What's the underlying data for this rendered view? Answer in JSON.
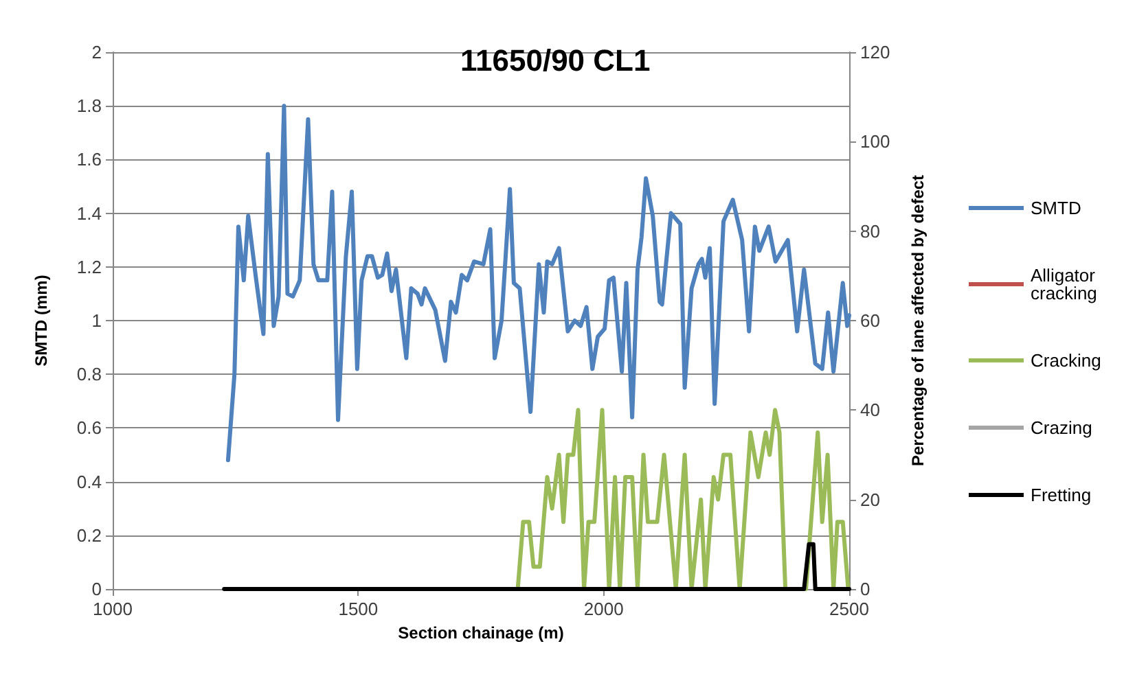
{
  "chart_data": {
    "type": "line",
    "title": "11650/90 CL1",
    "xlabel": "Section chainage (m)",
    "ylabel": "SMTD (mm)",
    "y2label": "Percentage of lane affected by defect",
    "xlim": [
      1000,
      2500
    ],
    "xticks": [
      1000,
      1500,
      2000,
      2500
    ],
    "ylim": [
      0,
      2
    ],
    "yticks": [
      0,
      0.2,
      0.4,
      0.6,
      0.8,
      1,
      1.2,
      1.4,
      1.6,
      1.8,
      2
    ],
    "y2lim": [
      0,
      120
    ],
    "y2ticks": [
      0,
      20,
      40,
      60,
      80,
      100,
      120
    ],
    "grid": "y",
    "legend": "right",
    "marker": "none",
    "line_style": "solid",
    "series": [
      {
        "name": "SMTD",
        "color": "#4f81bd",
        "x": [
          1235,
          1248,
          1256,
          1267,
          1276,
          1291,
          1307,
          1316,
          1328,
          1338,
          1349,
          1356,
          1367,
          1381,
          1398,
          1409,
          1419,
          1428,
          1437,
          1447,
          1459,
          1475,
          1487,
          1498,
          1507,
          1519,
          1528,
          1540,
          1549,
          1559,
          1568,
          1577,
          1598,
          1608,
          1621,
          1629,
          1636,
          1657,
          1677,
          1689,
          1699,
          1711,
          1722,
          1736,
          1755,
          1769,
          1778,
          1792,
          1809,
          1817,
          1829,
          1851,
          1868,
          1878,
          1885,
          1895,
          1909,
          1927,
          1941,
          1953,
          1965,
          1977,
          1988,
          2002,
          2011,
          2020,
          2037,
          2046,
          2058,
          2069,
          2077,
          2086,
          2100,
          2114,
          2119,
          2137,
          2156,
          2165,
          2179,
          2193,
          2200,
          2207,
          2216,
          2226,
          2244,
          2263,
          2282,
          2296,
          2308,
          2317,
          2336,
          2350,
          2375,
          2394,
          2408,
          2431,
          2445,
          2457,
          2468,
          2487,
          2496,
          2500
        ],
        "values": [
          0.48,
          0.8,
          1.35,
          1.15,
          1.39,
          1.17,
          0.95,
          1.62,
          0.98,
          1.09,
          1.8,
          1.1,
          1.09,
          1.15,
          1.75,
          1.21,
          1.15,
          1.15,
          1.15,
          1.48,
          0.63,
          1.24,
          1.48,
          0.82,
          1.15,
          1.24,
          1.24,
          1.16,
          1.17,
          1.25,
          1.11,
          1.19,
          0.86,
          1.12,
          1.1,
          1.06,
          1.12,
          1.04,
          0.85,
          1.07,
          1.03,
          1.17,
          1.15,
          1.22,
          1.21,
          1.34,
          0.86,
          1.0,
          1.49,
          1.14,
          1.12,
          0.66,
          1.21,
          1.03,
          1.22,
          1.21,
          1.27,
          0.96,
          1.0,
          0.98,
          1.05,
          0.82,
          0.94,
          0.97,
          1.15,
          1.16,
          0.81,
          1.14,
          0.64,
          1.19,
          1.31,
          1.53,
          1.39,
          1.07,
          1.06,
          1.4,
          1.36,
          0.75,
          1.12,
          1.21,
          1.23,
          1.16,
          1.27,
          0.69,
          1.37,
          1.45,
          1.3,
          0.96,
          1.35,
          1.26,
          1.35,
          1.22,
          1.3,
          0.96,
          1.19,
          0.84,
          0.82,
          1.03,
          0.81,
          1.14,
          0.98,
          1.02
        ]
      },
      {
        "name": "Alligator cracking",
        "color": "#c0504d",
        "axis": "y2"
      },
      {
        "name": "Cracking",
        "color": "#9bbb59",
        "axis": "y2",
        "x": [
          1825,
          1836,
          1848,
          1857,
          1870,
          1885,
          1895,
          1909,
          1918,
          1927,
          1938,
          1948,
          1960,
          1969,
          1981,
          1997,
          2011,
          2023,
          2033,
          2044,
          2058,
          2069,
          2081,
          2090,
          2104,
          2109,
          2123,
          2147,
          2165,
          2179,
          2198,
          2207,
          2224,
          2233,
          2244,
          2258,
          2277,
          2299,
          2315,
          2330,
          2338,
          2349,
          2358,
          2370,
          2412,
          2436,
          2445,
          2456,
          2468,
          2476,
          2487,
          2498
        ],
        "values": [
          0,
          15,
          15,
          5,
          5,
          25,
          18,
          30,
          15,
          30,
          30,
          40,
          0,
          15,
          15,
          40,
          0,
          25,
          0,
          25,
          25,
          0,
          30,
          15,
          15,
          15,
          30,
          0,
          30,
          0,
          20,
          0,
          25,
          20,
          30,
          30,
          0,
          35,
          25,
          35,
          30,
          40,
          35,
          0,
          0,
          35,
          15,
          30,
          0,
          15,
          15,
          0
        ]
      },
      {
        "name": "Crazing",
        "color": "#a5a5a5",
        "axis": "y2"
      },
      {
        "name": "Fretting",
        "color": "#000000",
        "axis": "y2",
        "x": [
          1227,
          2408,
          2418,
          2427,
          2431,
          2500
        ],
        "values": [
          0,
          0,
          10,
          10,
          0,
          0
        ]
      }
    ]
  }
}
